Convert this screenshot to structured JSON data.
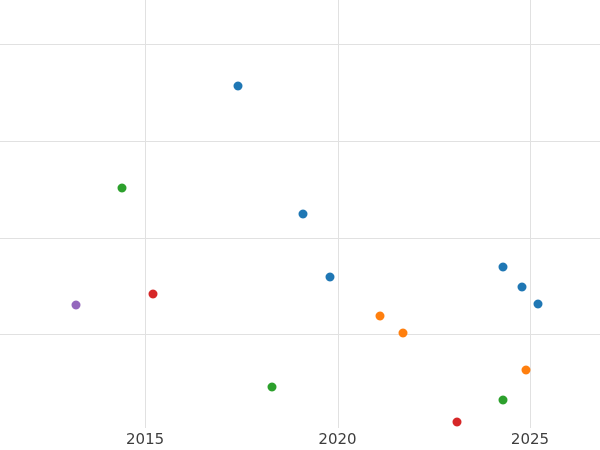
{
  "chart_data": {
    "type": "scatter",
    "title": "",
    "xlabel": "",
    "ylabel": "",
    "grid": true,
    "legend": false,
    "x_ticks": [
      {
        "value": 2015,
        "label": "2015"
      },
      {
        "value": 2020,
        "label": "2020"
      },
      {
        "value": 2025,
        "label": "2025"
      }
    ],
    "y_gridlines": [
      1,
      2,
      3,
      4
    ],
    "xlim": [
      2011.23,
      2026.82
    ],
    "ylim": [
      0.03,
      4.46
    ],
    "series": [
      {
        "name": "series-blue",
        "color": "#1f77b4",
        "points": [
          [
            2017.4,
            3.57
          ],
          [
            2019.1,
            2.25
          ],
          [
            2019.8,
            1.59
          ],
          [
            2024.3,
            1.7
          ],
          [
            2024.8,
            1.49
          ],
          [
            2025.2,
            1.31
          ]
        ]
      },
      {
        "name": "series-orange",
        "color": "#ff7f0e",
        "points": [
          [
            2021.1,
            1.19
          ],
          [
            2021.7,
            1.01
          ],
          [
            2024.9,
            0.63
          ]
        ]
      },
      {
        "name": "series-green",
        "color": "#2ca02c",
        "points": [
          [
            2014.4,
            2.51
          ],
          [
            2018.3,
            0.45
          ],
          [
            2024.3,
            0.32
          ]
        ]
      },
      {
        "name": "series-red",
        "color": "#d62728",
        "points": [
          [
            2015.2,
            1.42
          ],
          [
            2023.1,
            0.09
          ]
        ]
      },
      {
        "name": "series-purple",
        "color": "#9467bd",
        "points": [
          [
            2013.2,
            1.3
          ]
        ]
      }
    ],
    "colors": {
      "grid": "#e1e1e1",
      "tick_label": "#3d3d3d",
      "background": "#ffffff",
      "point_blue": "#1f77b4",
      "point_orange": "#ff7f0e",
      "point_green": "#2ca02c",
      "point_red": "#d62728",
      "point_purple": "#9467bd"
    }
  }
}
